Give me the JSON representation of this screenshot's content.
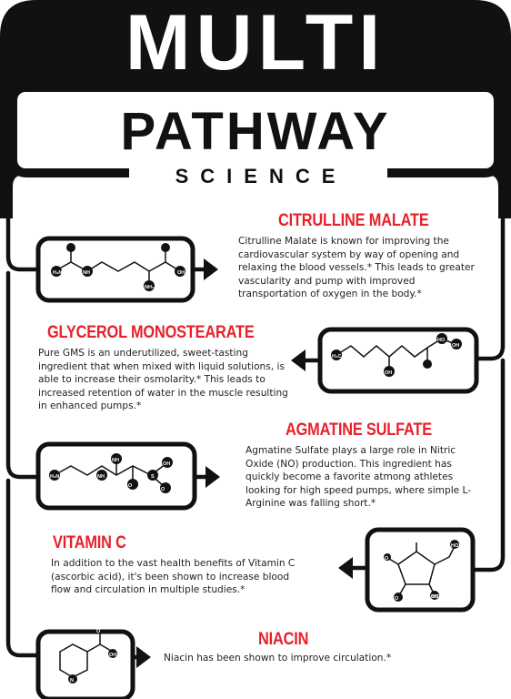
{
  "header": {
    "title_line1": "MULTI",
    "title_line2": "PATHWAY",
    "title_line3": "SCIENCE"
  },
  "ingredients": [
    {
      "name": "CITRULLINE MALATE",
      "description": "Citrulline Malate is known for improving the cardiovascular system by way of opening and relaxing the blood vessels.* This leads to greater vascularity and pump with improved transportation of oxygen in the body.*",
      "molecule_labels": [
        "H₂N",
        "NH",
        "NH₂",
        "OH"
      ]
    },
    {
      "name": "GLYCEROL MONOSTEARATE",
      "description": "Pure GMS is an underutilized, sweet-tasting ingredient that when mixed with liquid solutions, is able to increase their osmolarity.* This leads to increased retention of water in the muscle resulting in enhanced pumps.*",
      "molecule_labels": [
        "H₃C",
        "HO",
        "OH",
        "OH"
      ]
    },
    {
      "name": "AGMATINE SULFATE",
      "description": "Agmatine Sulfate plays a large role in Nitric Oxide (NO) production. This ingredient has quickly become a favorite atmong athletes looking for high speed pumps, where simple L-Arginine was falling short.*",
      "molecule_labels": [
        "H₂N",
        "NH",
        "NH",
        "OH",
        "S",
        "O",
        "O"
      ]
    },
    {
      "name": "VITAMIN C",
      "description": "In addition to the vast health benefits of Vitamin C (ascorbic acid), it's been shown to increase blood flow and circulation in multiple studies.*",
      "molecule_labels": [
        "HO",
        "O",
        "O",
        "HO",
        "OH"
      ]
    },
    {
      "name": "NIACIN",
      "description": "Niacin has been shown to improve circulation.*",
      "molecule_labels": [
        "N",
        "OH",
        "O"
      ]
    }
  ],
  "colors": {
    "accent": "#e8202a",
    "dark": "#111111",
    "background": "#ffffff"
  }
}
